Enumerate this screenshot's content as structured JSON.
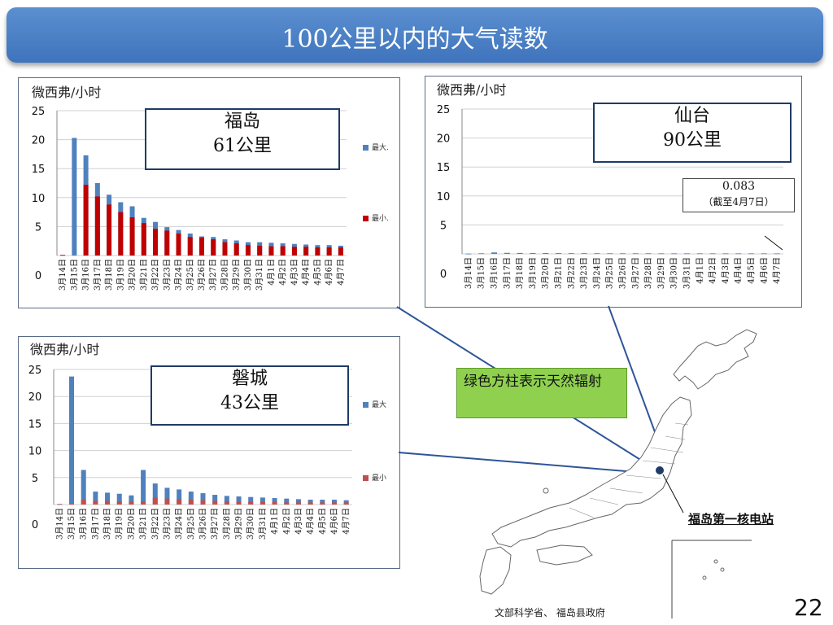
{
  "title": "100公里以内的大气读数",
  "unit_label": "微西弗/小时",
  "legend": {
    "max_label": "最大.",
    "min_label": "最小.",
    "max_label_alt": "最大",
    "min_label_alt": "最小"
  },
  "colors": {
    "max": "#4f81bd",
    "min": "#c00000",
    "min_alt": "#c0504d",
    "natural": "#8fd14f"
  },
  "note": "绿色方柱表示天然辐射",
  "plant_label": "福岛第一核电站",
  "source": "文部科学省、 福岛县政府",
  "page_number": "22",
  "chart_data": [
    {
      "type": "bar",
      "id": "fukushima",
      "callout_name": "福岛",
      "callout_dist": "61公里",
      "ylim": [
        0,
        25
      ],
      "yticks": [
        0,
        5,
        10,
        15,
        20,
        25
      ],
      "categories": [
        "3月14日",
        "3月15日",
        "3月16日",
        "3月17日",
        "3月18日",
        "3月19日",
        "3月20日",
        "3月21日",
        "3月22日",
        "3月23日",
        "3月24日",
        "3月25日",
        "3月26日",
        "3月27日",
        "3月28日",
        "3月29日",
        "3月30日",
        "3月31日",
        "4月1日",
        "4月2日",
        "4月3日",
        "4月4日",
        "4月5日",
        "4月6日",
        "4月7日"
      ],
      "series": [
        {
          "name": "最大.",
          "values": [
            0.1,
            20.3,
            17.3,
            12.5,
            10.5,
            9.2,
            8.5,
            6.5,
            5.8,
            4.9,
            4.4,
            3.8,
            3.3,
            3.2,
            2.8,
            2.6,
            2.3,
            2.3,
            2.2,
            2.1,
            2.0,
            1.9,
            1.8,
            1.8,
            1.7
          ]
        },
        {
          "name": "最小.",
          "values": [
            0.1,
            0,
            12.2,
            10.2,
            8.8,
            7.5,
            6.6,
            5.6,
            4.6,
            4.3,
            3.8,
            3.2,
            3.1,
            2.8,
            2.3,
            2.1,
            1.8,
            1.7,
            1.6,
            1.6,
            1.5,
            1.5,
            1.4,
            1.4,
            1.4
          ]
        }
      ]
    },
    {
      "type": "bar",
      "id": "sendai",
      "callout_name": "仙台",
      "callout_dist": "90公里",
      "annotation_value": "0.083",
      "annotation_date": "（截至4月7日）",
      "ylim": [
        0,
        25
      ],
      "yticks": [
        0,
        5,
        10,
        15,
        20,
        25
      ],
      "categories": [
        "3月14日",
        "3月15日",
        "3月16日",
        "3月17日",
        "3月18日",
        "3月19日",
        "3月20日",
        "3月21日",
        "3月22日",
        "3月23日",
        "3月24日",
        "3月25日",
        "3月26日",
        "3月27日",
        "3月28日",
        "3月29日",
        "3月30日",
        "3月31日",
        "4月1日",
        "4月2日",
        "4月3日",
        "4月4日",
        "4月5日",
        "4月6日",
        "4月7日"
      ],
      "series": [
        {
          "name": "最大",
          "values": [
            0.04,
            0.1,
            0.25,
            0.18,
            0.16,
            0.15,
            0.14,
            0.13,
            0.12,
            0.12,
            0.11,
            0.1,
            0.1,
            0.1,
            0.1,
            0.09,
            0.09,
            0.09,
            0.09,
            0.09,
            0.09,
            0.09,
            0.09,
            0.09,
            0.083
          ]
        }
      ]
    },
    {
      "type": "bar",
      "id": "iwaki",
      "callout_name": "磐城",
      "callout_dist": "43公里",
      "ylim": [
        0,
        25
      ],
      "yticks": [
        0,
        5,
        10,
        15,
        20,
        25
      ],
      "categories": [
        "3月14日",
        "3月15日",
        "3月16日",
        "3月17日",
        "3月18日",
        "3月19日",
        "3月20日",
        "3月21日",
        "3月22日",
        "3月23日",
        "3月24日",
        "3月25日",
        "3月26日",
        "3月27日",
        "3月28日",
        "3月29日",
        "3月30日",
        "3月31日",
        "4月1日",
        "4月2日",
        "4月3日",
        "4月4日",
        "4月5日",
        "4月6日",
        "4月7日"
      ],
      "series": [
        {
          "name": "最大",
          "values": [
            0.1,
            23.7,
            6.4,
            2.4,
            2.2,
            2.0,
            1.7,
            6.4,
            3.9,
            3.1,
            2.8,
            2.4,
            2.1,
            1.8,
            1.6,
            1.5,
            1.4,
            1.3,
            1.2,
            1.1,
            1.0,
            0.9,
            0.9,
            0.9,
            0.8
          ]
        },
        {
          "name": "最小",
          "values": [
            0.1,
            0.2,
            0.9,
            0.7,
            0.7,
            0.6,
            0.6,
            0.6,
            1.3,
            1.1,
            1.0,
            0.9,
            0.8,
            0.7,
            0.6,
            0.5,
            0.5,
            0.5,
            0.5,
            0.4,
            0.4,
            0.4,
            0.4,
            0.4,
            0.4
          ]
        }
      ]
    }
  ]
}
